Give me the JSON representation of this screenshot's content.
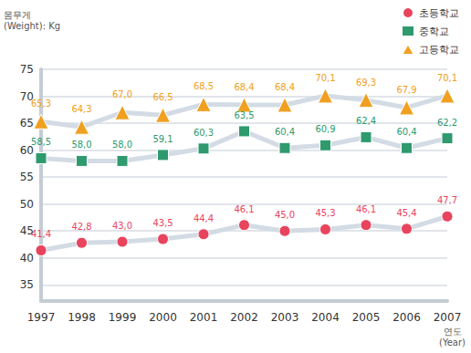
{
  "chart_data": {
    "type": "line",
    "y_label": "몸무게\n(Weight): Kg",
    "x_label": "연도\n(Year)",
    "categories": [
      "1997",
      "1998",
      "1999",
      "2000",
      "2001",
      "2002",
      "2003",
      "2004",
      "2005",
      "2006",
      "2007"
    ],
    "series": [
      {
        "name": "초등학교",
        "color": "#e8445e",
        "marker": "circle",
        "line_style": "solid",
        "values": [
          41.4,
          42.8,
          43.0,
          43.5,
          44.4,
          46.1,
          45.0,
          45.3,
          46.1,
          45.4,
          47.7
        ],
        "value_labels": [
          "41,4",
          "42,8",
          "43,0",
          "43,5",
          "44,4",
          "46,1",
          "45,0",
          "45,3",
          "46,1",
          "45,4",
          "47,7"
        ]
      },
      {
        "name": "중학교",
        "color": "#2e9a6e",
        "marker": "square",
        "line_style": "solid",
        "values": [
          58.5,
          58.0,
          58.0,
          59.1,
          60.3,
          63.5,
          60.4,
          60.9,
          62.4,
          60.4,
          62.2
        ],
        "value_labels": [
          "58,5",
          "58,0",
          "58,0",
          "59,1",
          "60,3",
          "63,5",
          "60,4",
          "60,9",
          "62,4",
          "60,4",
          "62,2"
        ]
      },
      {
        "name": "고등학교",
        "color": "#f0a020",
        "marker": "triangle",
        "line_style": "solid",
        "values": [
          65.3,
          64.3,
          67.0,
          66.5,
          68.5,
          68.4,
          68.4,
          70.1,
          69.3,
          67.9,
          70.1
        ],
        "value_labels": [
          "65,3",
          "64,3",
          "67,0",
          "66,5",
          "68,5",
          "68,4",
          "68,4",
          "70,1",
          "69,3",
          "67,9",
          "70,1"
        ]
      }
    ],
    "ylim": [
      32,
      75
    ],
    "yticks": [
      35,
      40,
      45,
      50,
      55,
      60,
      65,
      70,
      75
    ],
    "grid": true,
    "legend": "top-right",
    "data_labels": true
  }
}
